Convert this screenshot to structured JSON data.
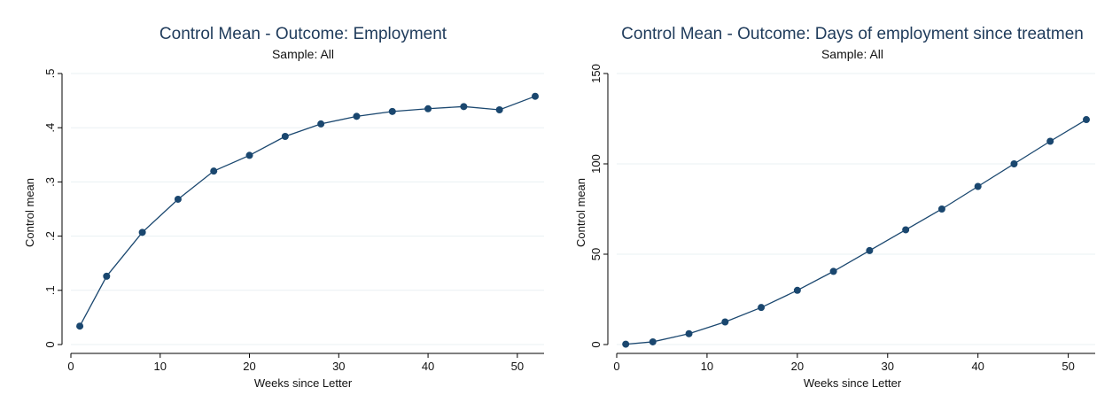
{
  "colors": {
    "series": "#1a476f",
    "title": "#1f3b5b",
    "grid": "#eaf0f3"
  },
  "chart_data": [
    {
      "type": "line",
      "title": "Control Mean - Outcome: Employment",
      "subtitle": "Sample: All",
      "xlabel": "Weeks since Letter",
      "ylabel": "Control mean",
      "xlim": [
        0,
        52
      ],
      "ylim": [
        0,
        0.5
      ],
      "xticks": [
        0,
        10,
        20,
        30,
        40,
        50
      ],
      "xtick_labels": [
        "0",
        "10",
        "20",
        "30",
        "40",
        "50"
      ],
      "yticks": [
        0,
        0.1,
        0.2,
        0.3,
        0.4,
        0.5
      ],
      "ytick_labels": [
        "0",
        ".1",
        ".2",
        ".3",
        ".4",
        ".5"
      ],
      "grid": true,
      "series": [
        {
          "x": [
            1,
            4,
            8,
            12,
            16,
            20,
            24,
            28,
            32,
            36,
            40,
            44,
            48,
            52
          ],
          "values": [
            0.034,
            0.126,
            0.207,
            0.268,
            0.32,
            0.349,
            0.384,
            0.407,
            0.421,
            0.43,
            0.435,
            0.439,
            0.433,
            0.458
          ]
        }
      ]
    },
    {
      "type": "line",
      "title": "Control Mean - Outcome: Days of employment since treatmen",
      "subtitle": "Sample: All",
      "xlabel": "Weeks since Letter",
      "ylabel": "Control mean",
      "xlim": [
        0,
        52
      ],
      "ylim": [
        0,
        150
      ],
      "xticks": [
        0,
        10,
        20,
        30,
        40,
        50
      ],
      "xtick_labels": [
        "0",
        "10",
        "20",
        "30",
        "40",
        "50"
      ],
      "yticks": [
        0,
        50,
        100,
        150
      ],
      "ytick_labels": [
        "0",
        "50",
        "100",
        "150"
      ],
      "grid": true,
      "series": [
        {
          "x": [
            1,
            4,
            8,
            12,
            16,
            20,
            24,
            28,
            32,
            36,
            40,
            44,
            48,
            52
          ],
          "values": [
            0.2,
            1.5,
            6.0,
            12.5,
            20.5,
            30.0,
            40.5,
            52.0,
            63.5,
            75.0,
            87.5,
            100.0,
            112.5,
            124.5
          ]
        }
      ]
    }
  ]
}
